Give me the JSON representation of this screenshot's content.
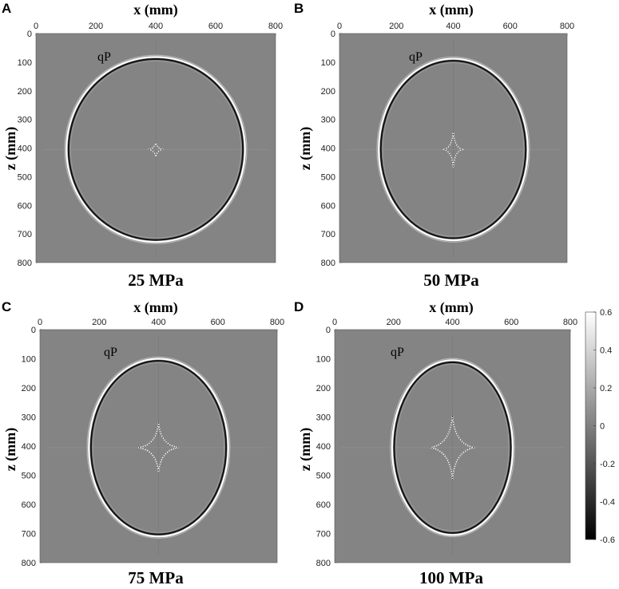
{
  "panels": [
    {
      "letter": "A",
      "xlabel": "x (mm)",
      "ylabel": "z (mm)",
      "caption": "25 MPa",
      "wave_label": "qP",
      "ellipse": {
        "cx": 400,
        "cz": 405,
        "rx": 298,
        "rz": 323
      },
      "cusp": {
        "hx": 25,
        "hz": 25,
        "curv": 0.15
      }
    },
    {
      "letter": "B",
      "xlabel": "x (mm)",
      "ylabel": "z (mm)",
      "caption": "50 MPa",
      "wave_label": "qP",
      "ellipse": {
        "cx": 400,
        "cz": 405,
        "rx": 262,
        "rz": 317
      },
      "cusp": {
        "hx": 32,
        "hz": 62,
        "curv": 0.12
      }
    },
    {
      "letter": "C",
      "xlabel": "x (mm)",
      "ylabel": "z (mm)",
      "caption": "75 MPa",
      "wave_label": "qP",
      "ellipse": {
        "cx": 400,
        "cz": 405,
        "rx": 235,
        "rz": 305
      },
      "cusp": {
        "hx": 68,
        "hz": 85,
        "curv": 0.1
      }
    },
    {
      "letter": "D",
      "xlabel": "x (mm)",
      "ylabel": "z (mm)",
      "caption": "100 MPa",
      "wave_label": "qP",
      "ellipse": {
        "cx": 400,
        "cz": 405,
        "rx": 205,
        "rz": 300
      },
      "cusp": {
        "hx": 75,
        "hz": 110,
        "curv": 0.1
      }
    }
  ],
  "axis": {
    "min": 0,
    "max": 800,
    "ticks": [
      0,
      200,
      400,
      600,
      800
    ],
    "zticks": [
      0,
      100,
      200,
      300,
      400,
      500,
      600,
      700,
      800
    ]
  },
  "colorbar": {
    "min": -0.6,
    "max": 0.6,
    "ticks": [
      "0.6",
      "0.4",
      "0.2",
      "0",
      "-0.2",
      "-0.4",
      "-0.6"
    ],
    "colormap": "gray"
  },
  "colors": {
    "background": "#848484",
    "bright": "#ffffff",
    "dark": "#111111"
  }
}
